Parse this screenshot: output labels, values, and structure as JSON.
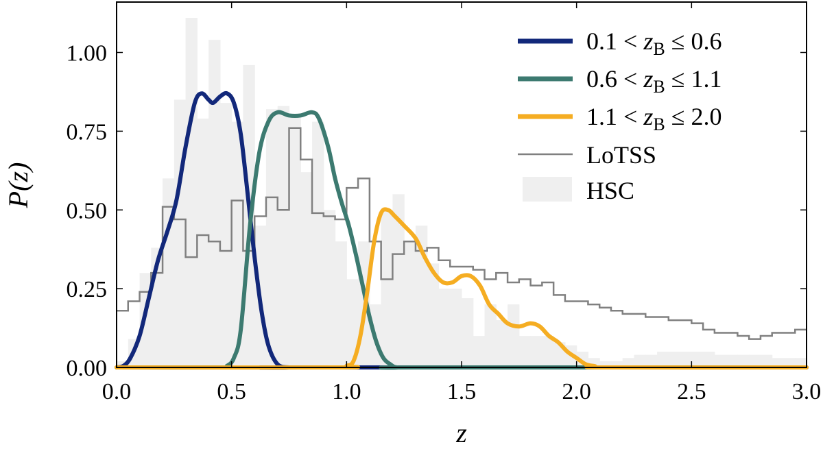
{
  "chart_data": {
    "type": "line",
    "xlabel": "z",
    "ylabel": "P(z)",
    "xlim": [
      0.0,
      3.0
    ],
    "ylim": [
      0.0,
      1.16
    ],
    "xticks": [
      "0.0",
      "0.5",
      "1.0",
      "1.5",
      "2.0",
      "2.5",
      "3.0"
    ],
    "xtick_values": [
      0.0,
      0.5,
      1.0,
      1.5,
      2.0,
      2.5,
      3.0
    ],
    "yticks": [
      "0.00",
      "0.25",
      "0.50",
      "0.75",
      "1.00"
    ],
    "ytick_values": [
      0.0,
      0.25,
      0.5,
      0.75,
      1.0
    ],
    "grid": false,
    "legend_position": "top-right",
    "legend": {
      "s1": {
        "lo": "0.1",
        "hi": "0.6",
        "var": "z",
        "sub": "B"
      },
      "s2": {
        "lo": "0.6",
        "hi": "1.1",
        "var": "z",
        "sub": "B"
      },
      "s3": {
        "lo": "1.1",
        "hi": "2.0",
        "var": "z",
        "sub": "B"
      },
      "lotss": "LoTSS",
      "hsc": "HSC"
    },
    "colors": {
      "s1": "#12287a",
      "s2": "#3c7a70",
      "s3": "#f5ad22",
      "lotss": "#808080",
      "hsc": "#efefef"
    },
    "hsc_hist": {
      "bin_width": 0.05,
      "heights": [
        0.02,
        0.09,
        0.3,
        0.38,
        0.6,
        0.85,
        1.11,
        0.79,
        1.04,
        0.84,
        0.78,
        0.96,
        0.45,
        0.82,
        0.83,
        0.8,
        0.62,
        0.78,
        0.5,
        0.4,
        0.28,
        0.4,
        0.2,
        0.5,
        0.55,
        0.4,
        0.45,
        0.33,
        0.25,
        0.25,
        0.22,
        0.1,
        0.2,
        0.15,
        0.2,
        0.1,
        0.1,
        0.1,
        0.08,
        0.07,
        0.05,
        0.03,
        0.02,
        0.02,
        0.03,
        0.04,
        0.04,
        0.05,
        0.05,
        0.05,
        0.05,
        0.05,
        0.04,
        0.04,
        0.04,
        0.04,
        0.04,
        0.03,
        0.03,
        0.03
      ]
    },
    "lotss_hist": {
      "bin_width": 0.05,
      "heights": [
        0.18,
        0.21,
        0.24,
        0.3,
        0.51,
        0.47,
        0.35,
        0.42,
        0.4,
        0.37,
        0.53,
        0.37,
        0.48,
        0.54,
        0.5,
        0.76,
        0.66,
        0.49,
        0.48,
        0.47,
        0.57,
        0.6,
        0.4,
        0.28,
        0.36,
        0.4,
        0.37,
        0.38,
        0.34,
        0.32,
        0.32,
        0.31,
        0.28,
        0.3,
        0.27,
        0.28,
        0.26,
        0.27,
        0.23,
        0.21,
        0.21,
        0.2,
        0.19,
        0.18,
        0.17,
        0.17,
        0.16,
        0.16,
        0.15,
        0.15,
        0.14,
        0.12,
        0.11,
        0.11,
        0.1,
        0.09,
        0.1,
        0.11,
        0.11,
        0.12
      ]
    },
    "series": [
      {
        "key": "s1",
        "x": [
          0.0,
          0.03,
          0.06,
          0.1,
          0.14,
          0.18,
          0.22,
          0.26,
          0.3,
          0.34,
          0.37,
          0.4,
          0.42,
          0.45,
          0.48,
          0.51,
          0.54,
          0.57,
          0.6,
          0.63,
          0.66,
          0.7,
          0.75,
          0.8,
          3.0
        ],
        "y": [
          0.0,
          0.005,
          0.03,
          0.1,
          0.22,
          0.34,
          0.43,
          0.53,
          0.7,
          0.84,
          0.87,
          0.85,
          0.84,
          0.86,
          0.87,
          0.84,
          0.74,
          0.55,
          0.35,
          0.18,
          0.07,
          0.01,
          0.0,
          0.0,
          0.0
        ]
      },
      {
        "key": "s2",
        "x": [
          0.0,
          0.45,
          0.48,
          0.51,
          0.54,
          0.58,
          0.62,
          0.66,
          0.7,
          0.75,
          0.8,
          0.85,
          0.88,
          0.92,
          0.95,
          0.98,
          1.01,
          1.04,
          1.07,
          1.1,
          1.13,
          1.16,
          1.19,
          1.22,
          1.3,
          3.0
        ],
        "y": [
          0.0,
          0.0,
          0.005,
          0.03,
          0.12,
          0.45,
          0.68,
          0.78,
          0.81,
          0.8,
          0.8,
          0.81,
          0.79,
          0.7,
          0.6,
          0.52,
          0.45,
          0.36,
          0.26,
          0.16,
          0.08,
          0.03,
          0.01,
          0.0,
          0.0,
          0.0
        ]
      },
      {
        "key": "s3",
        "x": [
          0.0,
          0.97,
          1.0,
          1.03,
          1.06,
          1.09,
          1.12,
          1.15,
          1.18,
          1.21,
          1.25,
          1.3,
          1.34,
          1.38,
          1.42,
          1.46,
          1.5,
          1.54,
          1.58,
          1.62,
          1.66,
          1.7,
          1.75,
          1.8,
          1.84,
          1.88,
          1.92,
          1.96,
          2.0,
          2.04,
          2.08,
          2.12,
          3.0
        ],
        "y": [
          0.0,
          0.0,
          0.005,
          0.02,
          0.1,
          0.24,
          0.4,
          0.49,
          0.5,
          0.48,
          0.45,
          0.41,
          0.35,
          0.3,
          0.27,
          0.27,
          0.29,
          0.29,
          0.26,
          0.2,
          0.17,
          0.14,
          0.13,
          0.14,
          0.13,
          0.1,
          0.08,
          0.05,
          0.03,
          0.01,
          0.004,
          0.0,
          0.0
        ]
      }
    ]
  }
}
